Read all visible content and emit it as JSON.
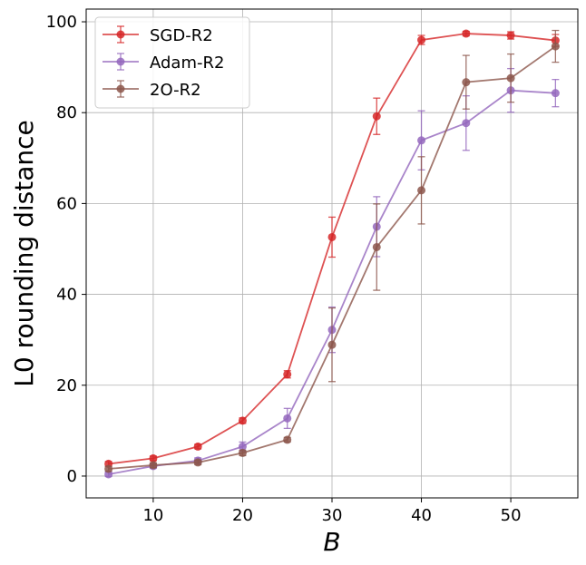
{
  "chart_data": {
    "type": "line",
    "title": "",
    "xlabel": "B",
    "ylabel": "L0 rounding distance",
    "x": [
      5,
      10,
      15,
      20,
      25,
      30,
      35,
      40,
      45,
      50,
      55
    ],
    "xlim": [
      2.5,
      57.5
    ],
    "ylim": [
      -4.8,
      102.8
    ],
    "xticks": [
      10,
      20,
      30,
      40,
      50
    ],
    "yticks": [
      0,
      20,
      40,
      60,
      80,
      100
    ],
    "grid": true,
    "legend_position": "upper-left",
    "series": [
      {
        "name": "SGD-R2",
        "color": "#d62728",
        "values": [
          2.7,
          3.9,
          6.5,
          12.2,
          22.4,
          52.6,
          79.2,
          96.0,
          97.4,
          97.0,
          95.9
        ],
        "errors": [
          0.5,
          0.5,
          0.5,
          0.6,
          0.8,
          4.4,
          4.0,
          1.0,
          0.5,
          0.8,
          1.3
        ]
      },
      {
        "name": "Adam-R2",
        "color": "#9467bd",
        "values": [
          0.4,
          2.2,
          3.4,
          6.5,
          12.7,
          32.2,
          54.9,
          73.9,
          77.7,
          84.9,
          84.3
        ],
        "errors": [
          0.5,
          0.5,
          0.6,
          1.0,
          2.2,
          5.0,
          6.6,
          6.5,
          6.0,
          4.8,
          3.0
        ]
      },
      {
        "name": "2O-R2",
        "color": "#8c564b",
        "values": [
          1.6,
          2.4,
          3.0,
          5.1,
          8.0,
          28.9,
          50.4,
          62.9,
          86.7,
          87.6,
          94.6
        ],
        "errors": [
          0.5,
          0.5,
          0.5,
          0.6,
          0.5,
          8.1,
          9.5,
          7.4,
          5.9,
          5.3,
          3.5
        ]
      }
    ]
  }
}
